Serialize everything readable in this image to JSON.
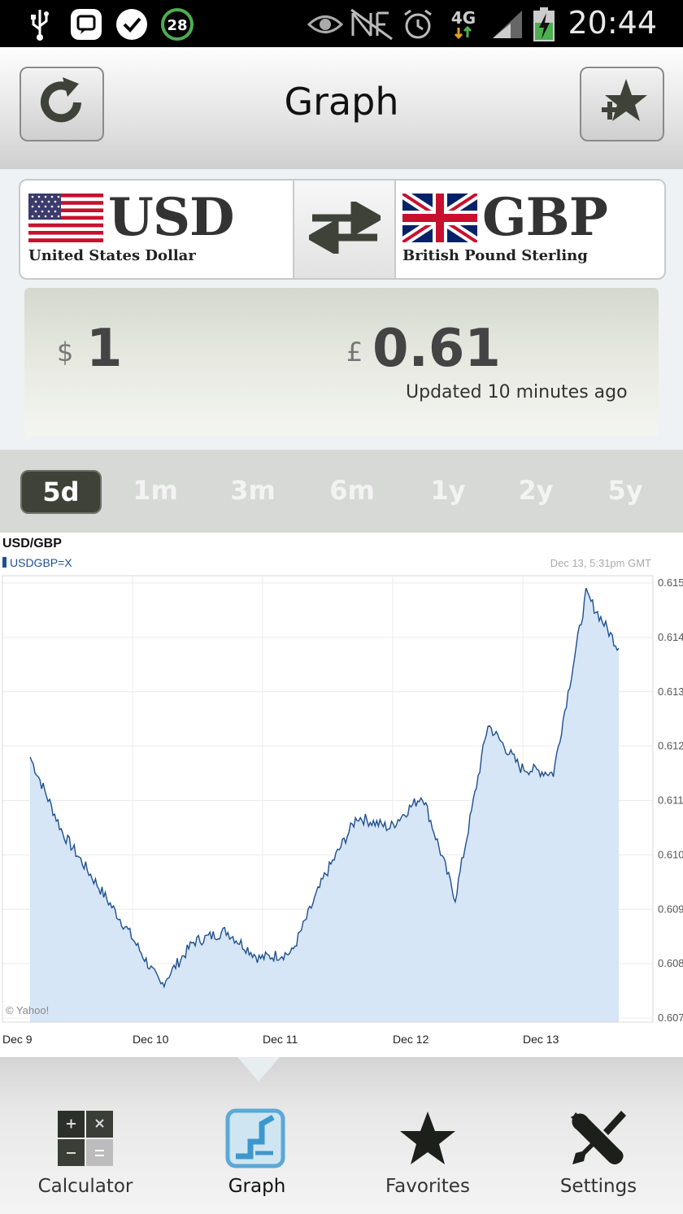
{
  "status_bar": {
    "time": "20:44",
    "notification_count": "28",
    "network_type": "4G"
  },
  "header": {
    "title": "Graph"
  },
  "converter": {
    "from": {
      "code": "USD",
      "name": "United States Dollar",
      "symbol": "$",
      "amount": "1"
    },
    "to": {
      "code": "GBP",
      "name": "British Pound Sterling",
      "symbol": "£",
      "amount": "0.61"
    },
    "updated": "Updated 10 minutes ago"
  },
  "periods": {
    "items": [
      "5d",
      "1m",
      "3m",
      "6m",
      "1y",
      "2y",
      "5y"
    ],
    "selected": "5d"
  },
  "chart_data": {
    "type": "area",
    "title": "USD/GBP",
    "series": [
      {
        "name": "USDGBP=X",
        "x": [
          "Dec 9",
          "Dec 9",
          "Dec 9",
          "Dec 9",
          "Dec 10",
          "Dec 10",
          "Dec 10",
          "Dec 10",
          "Dec 11",
          "Dec 11",
          "Dec 11",
          "Dec 11",
          "Dec 12",
          "Dec 12",
          "Dec 12",
          "Dec 12",
          "Dec 13",
          "Dec 13",
          "Dec 13"
        ],
        "values": [
          0.6118,
          0.6104,
          0.6095,
          0.6086,
          0.6076,
          0.6084,
          0.6086,
          0.6081,
          0.6082,
          0.6096,
          0.6107,
          0.6105,
          0.6111,
          0.6092,
          0.6124,
          0.6116,
          0.6115,
          0.6148,
          0.6138
        ]
      }
    ],
    "timestamp": "Dec 13, 5:31pm GMT",
    "x_ticks": [
      "Dec 9",
      "Dec 10",
      "Dec 11",
      "Dec 12",
      "Dec 13"
    ],
    "y_ticks": [
      "0.607",
      "0.608",
      "0.609",
      "0.610",
      "0.611",
      "0.612",
      "0.613",
      "0.614",
      "0.615"
    ],
    "ylim": [
      0.607,
      0.615
    ],
    "credit": "© Yahoo!",
    "grid": true,
    "colors": {
      "line": "#1f4f8f",
      "fill": "#d6e6f7"
    }
  },
  "bottom_nav": {
    "items": [
      {
        "label": "Calculator",
        "icon": "calculator-icon"
      },
      {
        "label": "Graph",
        "icon": "graph-icon"
      },
      {
        "label": "Favorites",
        "icon": "star-icon"
      },
      {
        "label": "Settings",
        "icon": "settings-icon"
      }
    ],
    "active": "Graph"
  }
}
